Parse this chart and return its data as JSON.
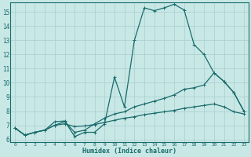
{
  "xlabel": "Humidex (Indice chaleur)",
  "bg_color": "#c8e8e6",
  "grid_color": "#a8cece",
  "line_color": "#1a6b6b",
  "xlim": [
    -0.5,
    23.5
  ],
  "ylim": [
    5.8,
    15.7
  ],
  "yticks": [
    6,
    7,
    8,
    9,
    10,
    11,
    12,
    13,
    14,
    15
  ],
  "xticks": [
    0,
    1,
    2,
    3,
    4,
    5,
    6,
    7,
    8,
    9,
    10,
    11,
    12,
    13,
    14,
    15,
    16,
    17,
    18,
    19,
    20,
    21,
    22,
    23
  ],
  "line1_x": [
    0,
    1,
    2,
    3,
    4,
    5,
    6,
    7,
    8,
    9,
    10,
    11,
    12,
    13,
    14,
    15,
    16,
    17,
    18,
    19,
    20,
    21,
    22,
    23
  ],
  "line1_y": [
    6.8,
    6.3,
    6.5,
    6.65,
    7.25,
    7.3,
    6.2,
    6.5,
    6.5,
    7.1,
    10.4,
    8.3,
    13.0,
    15.3,
    15.1,
    15.3,
    15.55,
    15.15,
    12.7,
    12.0,
    10.7,
    10.1,
    9.3,
    8.0
  ],
  "line2_x": [
    0,
    1,
    2,
    3,
    4,
    5,
    6,
    7,
    8,
    9,
    10,
    11,
    12,
    13,
    14,
    15,
    16,
    17,
    18,
    19,
    20,
    21,
    22,
    23
  ],
  "line2_y": [
    6.8,
    6.3,
    6.5,
    6.65,
    7.0,
    7.25,
    6.5,
    6.65,
    7.1,
    7.5,
    7.8,
    7.95,
    8.3,
    8.5,
    8.7,
    8.9,
    9.15,
    9.55,
    9.65,
    9.85,
    10.7,
    10.1,
    9.3,
    8.0
  ],
  "line3_x": [
    0,
    1,
    2,
    3,
    4,
    5,
    6,
    7,
    8,
    9,
    10,
    11,
    12,
    13,
    14,
    15,
    16,
    17,
    18,
    19,
    20,
    21,
    22,
    23
  ],
  "line3_y": [
    6.8,
    6.3,
    6.5,
    6.65,
    7.0,
    7.1,
    6.9,
    6.95,
    7.05,
    7.2,
    7.35,
    7.5,
    7.6,
    7.75,
    7.85,
    7.95,
    8.05,
    8.2,
    8.3,
    8.4,
    8.5,
    8.3,
    7.95,
    7.8
  ]
}
